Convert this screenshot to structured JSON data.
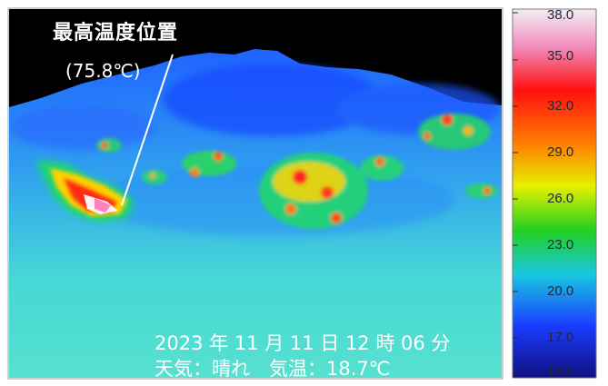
{
  "annotation": {
    "title": "最高温度位置",
    "value": "(75.8℃)"
  },
  "timestamp": "2023 年 11 月 11 日 12 時 06 分",
  "weather": "天気：晴れ　気温：18.7℃",
  "scale": {
    "labels": [
      "38.0",
      "35.0",
      "32.0",
      "29.0",
      "26.0",
      "23.0",
      "20.0",
      "17.0",
      "14.0"
    ]
  },
  "colors": {
    "sky": "#000000",
    "cold": "#1f5cff",
    "mid": "#3fd8c8",
    "warm": "#ffe000",
    "hot": "#ff1a1a",
    "hottest": "#ffffff"
  }
}
